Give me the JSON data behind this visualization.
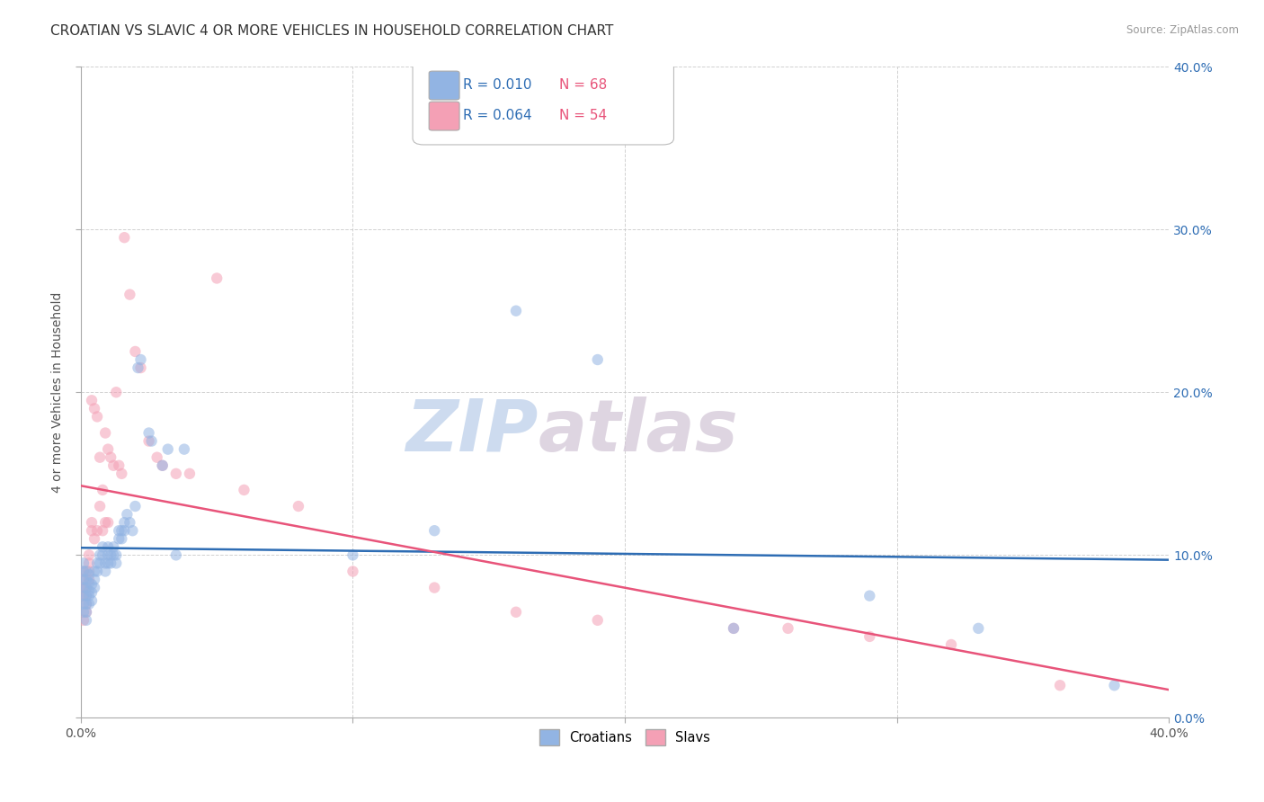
{
  "title": "CROATIAN VS SLAVIC 4 OR MORE VEHICLES IN HOUSEHOLD CORRELATION CHART",
  "source": "Source: ZipAtlas.com",
  "ylabel": "4 or more Vehicles in Household",
  "xmin": 0.0,
  "xmax": 0.4,
  "ymin": 0.0,
  "ymax": 0.4,
  "xticks": [
    0.0,
    0.1,
    0.2,
    0.3,
    0.4
  ],
  "yticks": [
    0.0,
    0.1,
    0.2,
    0.3,
    0.4
  ],
  "xtick_labels_show": [
    "0.0%",
    "",
    "",
    "",
    "40.0%"
  ],
  "ytick_labels_right": [
    "0.0%",
    "10.0%",
    "20.0%",
    "30.0%",
    "40.0%"
  ],
  "croatians_color": "#92b4e3",
  "slavs_color": "#f4a0b5",
  "croatians_line_color": "#2e6db4",
  "slavs_line_color": "#e8547a",
  "legend_r_croatians": "R = 0.010",
  "legend_n_croatians": "N = 68",
  "legend_r_slavs": "R = 0.064",
  "legend_n_slavs": "N = 54",
  "legend_r_color": "#2e6db4",
  "legend_n_color": "#e8547a",
  "watermark_zip": "ZIP",
  "watermark_atlas": "atlas",
  "croatians_x": [
    0.001,
    0.001,
    0.001,
    0.001,
    0.001,
    0.001,
    0.001,
    0.002,
    0.002,
    0.002,
    0.002,
    0.002,
    0.002,
    0.002,
    0.003,
    0.003,
    0.003,
    0.003,
    0.003,
    0.004,
    0.004,
    0.004,
    0.005,
    0.005,
    0.005,
    0.006,
    0.006,
    0.007,
    0.007,
    0.008,
    0.008,
    0.009,
    0.009,
    0.01,
    0.01,
    0.01,
    0.011,
    0.011,
    0.012,
    0.012,
    0.013,
    0.013,
    0.014,
    0.014,
    0.015,
    0.015,
    0.016,
    0.016,
    0.017,
    0.018,
    0.019,
    0.02,
    0.021,
    0.022,
    0.025,
    0.026,
    0.03,
    0.032,
    0.035,
    0.038,
    0.1,
    0.13,
    0.16,
    0.19,
    0.24,
    0.29,
    0.33,
    0.38
  ],
  "croatians_y": [
    0.075,
    0.08,
    0.085,
    0.09,
    0.095,
    0.07,
    0.065,
    0.08,
    0.075,
    0.07,
    0.085,
    0.09,
    0.065,
    0.06,
    0.078,
    0.083,
    0.088,
    0.075,
    0.07,
    0.082,
    0.077,
    0.072,
    0.09,
    0.085,
    0.08,
    0.095,
    0.09,
    0.1,
    0.095,
    0.105,
    0.1,
    0.095,
    0.09,
    0.1,
    0.095,
    0.105,
    0.1,
    0.095,
    0.105,
    0.1,
    0.1,
    0.095,
    0.115,
    0.11,
    0.115,
    0.11,
    0.12,
    0.115,
    0.125,
    0.12,
    0.115,
    0.13,
    0.215,
    0.22,
    0.175,
    0.17,
    0.155,
    0.165,
    0.1,
    0.165,
    0.1,
    0.115,
    0.25,
    0.22,
    0.055,
    0.075,
    0.055,
    0.02
  ],
  "slavs_x": [
    0.001,
    0.001,
    0.001,
    0.001,
    0.001,
    0.002,
    0.002,
    0.002,
    0.002,
    0.003,
    0.003,
    0.003,
    0.003,
    0.004,
    0.004,
    0.004,
    0.005,
    0.005,
    0.006,
    0.006,
    0.007,
    0.007,
    0.008,
    0.008,
    0.009,
    0.009,
    0.01,
    0.01,
    0.011,
    0.012,
    0.013,
    0.014,
    0.015,
    0.016,
    0.018,
    0.02,
    0.022,
    0.025,
    0.028,
    0.03,
    0.035,
    0.04,
    0.05,
    0.06,
    0.08,
    0.1,
    0.13,
    0.16,
    0.19,
    0.24,
    0.26,
    0.29,
    0.32,
    0.36
  ],
  "slavs_y": [
    0.075,
    0.08,
    0.085,
    0.09,
    0.06,
    0.065,
    0.07,
    0.075,
    0.08,
    0.085,
    0.09,
    0.095,
    0.1,
    0.195,
    0.12,
    0.115,
    0.19,
    0.11,
    0.185,
    0.115,
    0.16,
    0.13,
    0.14,
    0.115,
    0.175,
    0.12,
    0.165,
    0.12,
    0.16,
    0.155,
    0.2,
    0.155,
    0.15,
    0.295,
    0.26,
    0.225,
    0.215,
    0.17,
    0.16,
    0.155,
    0.15,
    0.15,
    0.27,
    0.14,
    0.13,
    0.09,
    0.08,
    0.065,
    0.06,
    0.055,
    0.055,
    0.05,
    0.045,
    0.02
  ],
  "background_color": "#ffffff",
  "grid_color": "#cccccc",
  "title_fontsize": 11,
  "axis_label_fontsize": 10,
  "tick_fontsize": 10,
  "marker_size": 80,
  "marker_alpha": 0.55,
  "line_width": 1.8
}
